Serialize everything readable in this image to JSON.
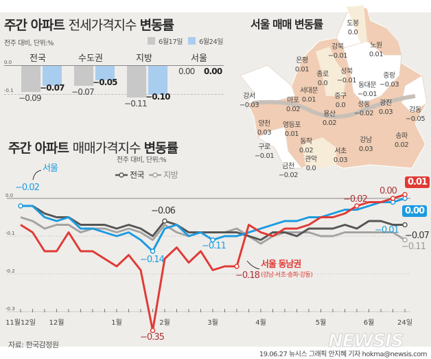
{
  "jeonse": {
    "title_bold": "주간 아파트 ",
    "title_light": "전세가격지수 ",
    "title_end": "변동률",
    "unit": "전주 대비, 단위:%",
    "legend": [
      {
        "label": "6월17일",
        "color": "#c8c8c8"
      },
      {
        "label": "6월24일",
        "color": "#a9cdee"
      }
    ],
    "axis": {
      "zero": "0.0",
      "minus01": "-0.1"
    },
    "groups": [
      {
        "name": "전국",
        "values": [
          -0.09,
          -0.07
        ],
        "labels": [
          "−0.09",
          "−0.07"
        ]
      },
      {
        "name": "수도권",
        "values": [
          -0.07,
          -0.05
        ],
        "labels": [
          "−0.07",
          "−0.05"
        ]
      },
      {
        "name": "지방",
        "values": [
          -0.11,
          -0.1
        ],
        "labels": [
          "−0.11",
          "−0.10"
        ]
      },
      {
        "name": "서울",
        "values": [
          0.0,
          0.0
        ],
        "labels": [
          "0.00",
          "0.00"
        ]
      }
    ]
  },
  "map": {
    "title": "서울 매매 변동률",
    "districts": [
      {
        "name": "도봉",
        "value": "0.0"
      },
      {
        "name": "노원",
        "value": "0.01"
      },
      {
        "name": "강북",
        "value": "−0.01"
      },
      {
        "name": "은평",
        "value": "0.01"
      },
      {
        "name": "종로",
        "value": "0.0"
      },
      {
        "name": "성북",
        "value": "−0.01"
      },
      {
        "name": "중랑",
        "value": "−0.03"
      },
      {
        "name": "동대문",
        "value": "−0.01"
      },
      {
        "name": "강서",
        "value": "−0.03"
      },
      {
        "name": "서대문",
        "value": "0.01"
      },
      {
        "name": "마포",
        "value": "0.02"
      },
      {
        "name": "중구",
        "value": "0.0"
      },
      {
        "name": "성동",
        "value": "−0.02"
      },
      {
        "name": "광진",
        "value": "0.03"
      },
      {
        "name": "강동",
        "value": "−0.05"
      },
      {
        "name": "양천",
        "value": "0.03"
      },
      {
        "name": "영등포",
        "value": "0.01"
      },
      {
        "name": "용산",
        "value": "0.02"
      },
      {
        "name": "동작",
        "value": "0.02"
      },
      {
        "name": "강남",
        "value": "0.03"
      },
      {
        "name": "송파",
        "value": "0.02"
      },
      {
        "name": "구로",
        "value": "−0.01"
      },
      {
        "name": "서초",
        "value": "0.03"
      },
      {
        "name": "관악",
        "value": "0.0"
      },
      {
        "name": "금천",
        "value": "−0.02"
      }
    ],
    "colors": {
      "positive": "#f0cdb4",
      "zero": "#f7ecd8",
      "negative": "#ffffff"
    }
  },
  "chart_data": {
    "type": "line",
    "title_bold": "주간 아파트 ",
    "title_light": "매매가격지수 ",
    "title_end": "변동률",
    "unit": "전주 대비, 단위:%",
    "ylim": [
      -0.3,
      0.0
    ],
    "yticks": [
      "0.0",
      "-0.1",
      "-0.2",
      "-0.3"
    ],
    "month_labels": [
      {
        "label": "11월12일",
        "week": 0
      },
      {
        "label": "12월",
        "week": 3
      },
      {
        "label": "1월",
        "week": 8
      },
      {
        "label": "2월",
        "week": 12
      },
      {
        "label": "3월",
        "week": 16
      },
      {
        "label": "4월",
        "week": 20
      },
      {
        "label": "5월",
        "week": 25
      },
      {
        "label": "6월",
        "week": 29
      },
      {
        "label": "24일",
        "week": 32
      }
    ],
    "series": [
      {
        "name": "지방",
        "color": "#a3a3a3",
        "values": [
          -0.05,
          -0.06,
          -0.08,
          -0.07,
          -0.07,
          -0.09,
          -0.08,
          -0.08,
          -0.09,
          -0.08,
          -0.09,
          -0.11,
          -0.07,
          -0.09,
          -0.1,
          -0.09,
          -0.09,
          -0.09,
          -0.08,
          -0.1,
          -0.12,
          -0.1,
          -0.09,
          -0.09,
          -0.09,
          -0.1,
          -0.1,
          -0.09,
          -0.09,
          -0.09,
          -0.09,
          -0.09,
          -0.11
        ]
      },
      {
        "name": "전국",
        "color": "#555555",
        "values": [
          -0.02,
          -0.02,
          -0.04,
          -0.05,
          -0.05,
          -0.07,
          -0.07,
          -0.07,
          -0.08,
          -0.07,
          -0.08,
          -0.1,
          -0.06,
          -0.07,
          -0.09,
          -0.09,
          -0.09,
          -0.09,
          -0.09,
          -0.1,
          -0.11,
          -0.09,
          -0.09,
          -0.1,
          -0.08,
          -0.08,
          -0.08,
          -0.07,
          -0.08,
          -0.06,
          -0.06,
          -0.07,
          -0.07
        ]
      },
      {
        "name": "서울",
        "color": "#1c9be0",
        "values": [
          -0.02,
          -0.02,
          -0.05,
          -0.06,
          -0.05,
          -0.08,
          -0.08,
          -0.09,
          -0.1,
          -0.09,
          -0.11,
          -0.14,
          -0.08,
          -0.07,
          -0.1,
          -0.09,
          -0.11,
          -0.1,
          -0.1,
          -0.09,
          -0.08,
          -0.07,
          -0.06,
          -0.06,
          -0.05,
          -0.05,
          -0.04,
          -0.03,
          -0.03,
          -0.02,
          -0.01,
          -0.01,
          0.0
        ]
      },
      {
        "name": "서울 동남권",
        "color": "#e03a35",
        "values": [
          -0.07,
          -0.09,
          -0.14,
          -0.14,
          -0.09,
          -0.14,
          -0.14,
          -0.16,
          -0.18,
          -0.15,
          -0.19,
          -0.35,
          -0.16,
          -0.13,
          -0.17,
          -0.14,
          -0.19,
          -0.18,
          -0.18,
          -0.07,
          -0.09,
          -0.1,
          -0.08,
          -0.08,
          -0.07,
          -0.05,
          -0.05,
          -0.04,
          -0.02,
          -0.01,
          -0.01,
          0.0,
          0.01
        ]
      }
    ],
    "legend": [
      "전국",
      "지방"
    ],
    "annotations": {
      "seoul": "서울",
      "seoul_first": "−0.02",
      "national_peak": "−0.06",
      "seoul_low": "−0.14",
      "seoul_mar": "−0.11",
      "se_mar": "−0.18",
      "se_low": "−0.35",
      "se_name": "서울 동남권",
      "se_sub": "(강남·서초·송파·강동)",
      "se_may": "−0.02",
      "se_prev": "0.00",
      "se_last": "0.01",
      "seoul_prev": "−0.01",
      "seoul_last": "0.00",
      "national_last": "−0.07",
      "regional_last": "−0.11"
    }
  },
  "source": "자료: 한국감정원",
  "watermark": "NEWSIS",
  "credit": "19.06.27 뉴시스 그래픽 안지혜 기자 hokma@newsis.com"
}
